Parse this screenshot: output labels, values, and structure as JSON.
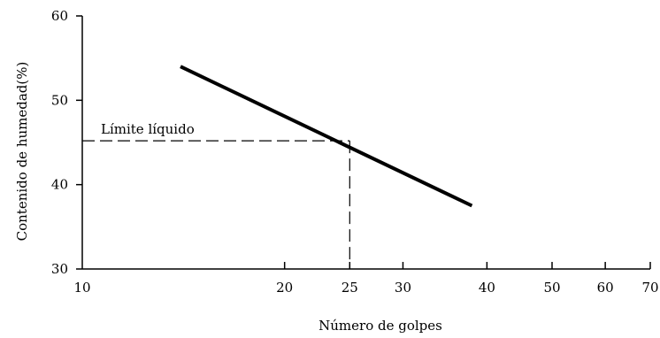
{
  "chart_data": {
    "type": "line",
    "x_scale": "log",
    "xlabel": "Número de golpes",
    "ylabel": "Contenido de humedad(%)",
    "xlim": [
      10,
      70
    ],
    "ylim": [
      30,
      60
    ],
    "x_ticks": [
      10,
      20,
      25,
      30,
      40,
      50,
      60,
      70
    ],
    "y_ticks": [
      30,
      40,
      50,
      60
    ],
    "grid": false,
    "series": [
      {
        "color": "#000000",
        "points": [
          {
            "x": 14,
            "y": 54.0
          },
          {
            "x": 38,
            "y": 37.5
          }
        ]
      }
    ],
    "annotations": [
      {
        "label": "Límite líquido",
        "x": 25,
        "y": 45.2,
        "style": "dashed"
      }
    ]
  }
}
